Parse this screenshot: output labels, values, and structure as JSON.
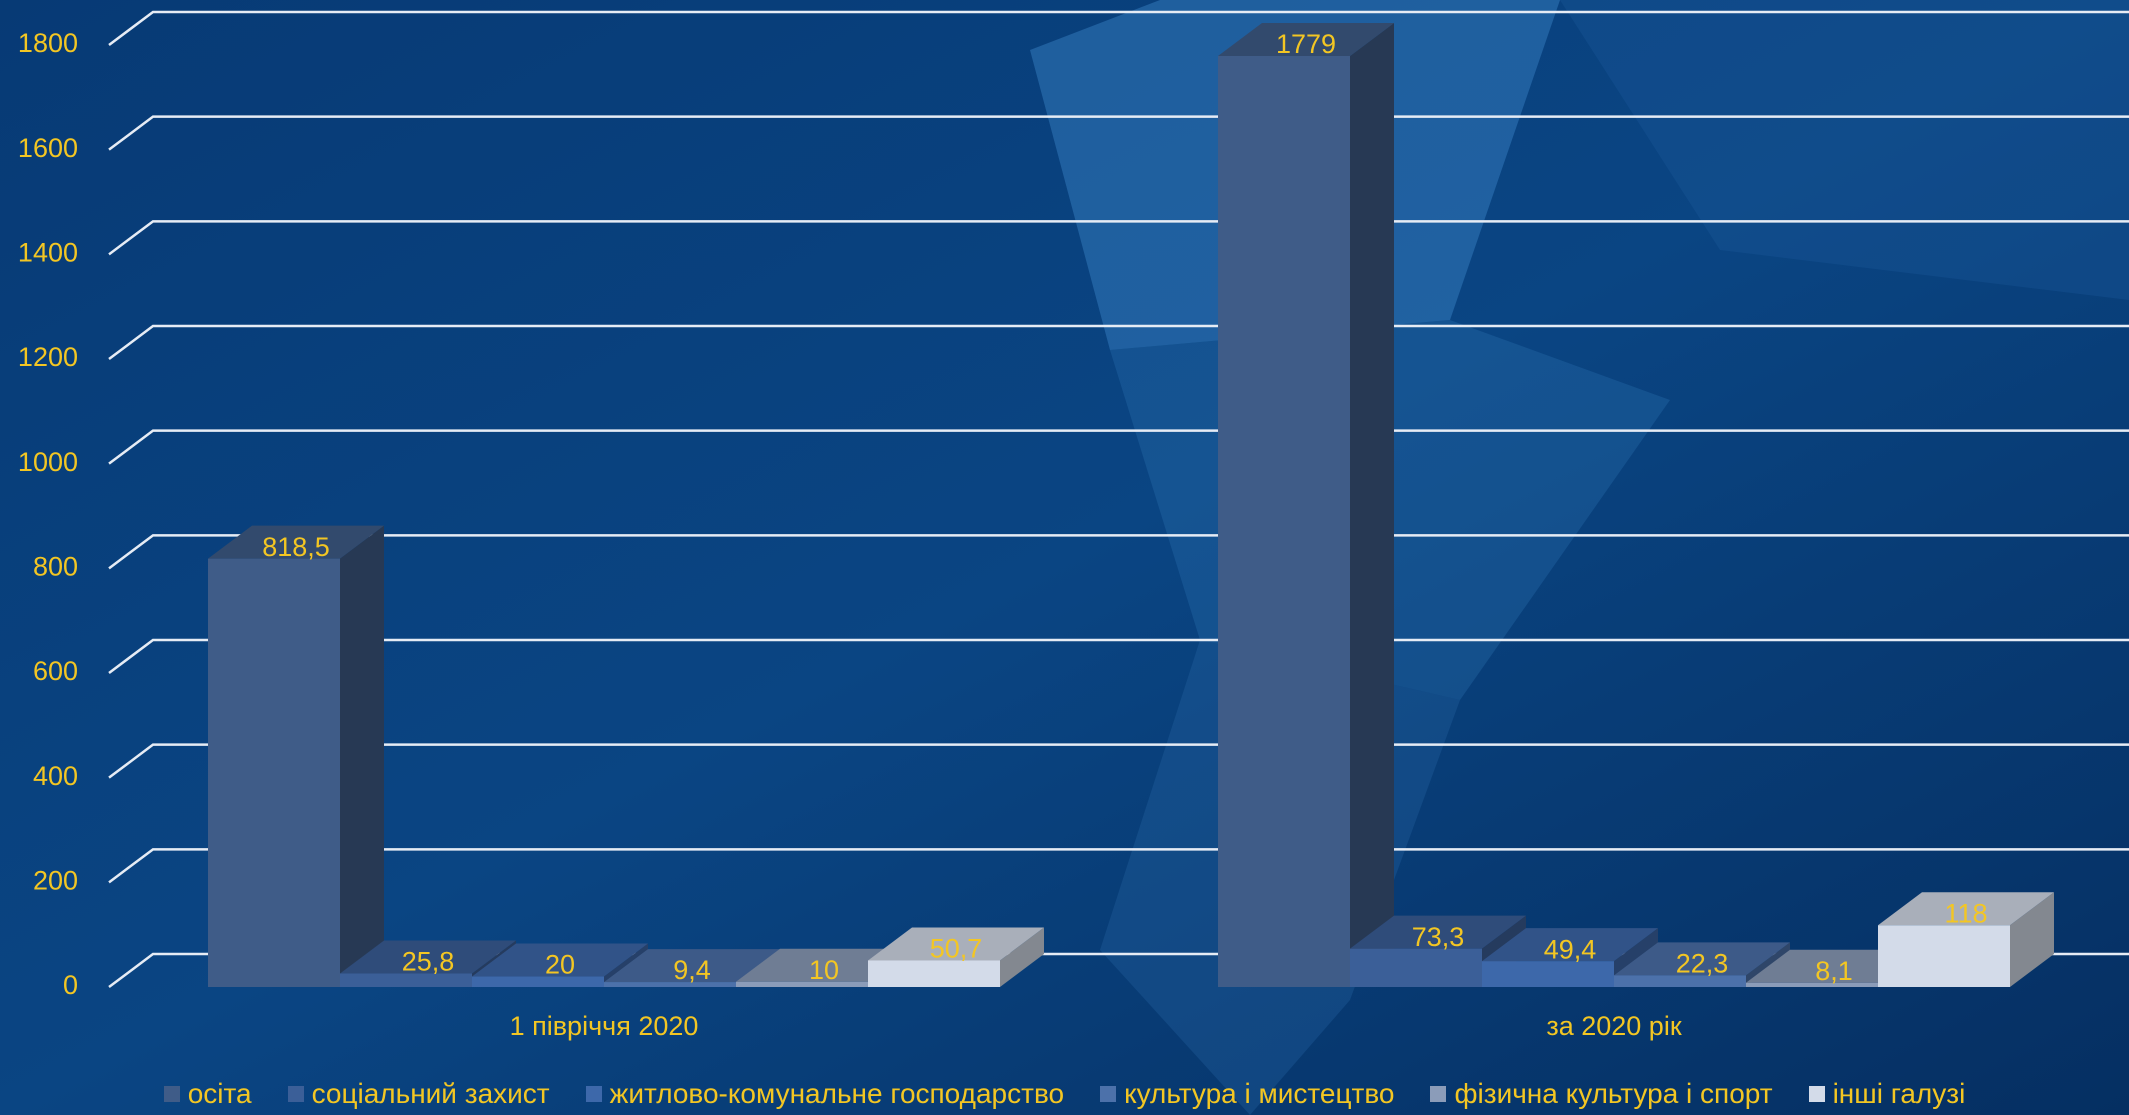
{
  "chart_data": {
    "type": "bar3d",
    "categories": [
      "1 півріччя 2020",
      "за 2020 рік"
    ],
    "series": [
      {
        "name": "осіта",
        "color": "#3f5c88",
        "values": [
          818.5,
          1779
        ],
        "value_labels": [
          "818,5",
          "1779"
        ]
      },
      {
        "name": "соціальний захист",
        "color": "#3b5f98",
        "values": [
          25.8,
          73.3
        ],
        "value_labels": [
          "25,8",
          "73,3"
        ]
      },
      {
        "name": "житлово-комунальне господарство",
        "color": "#3d68aa",
        "values": [
          20,
          49.4
        ],
        "value_labels": [
          "20",
          "49,4"
        ]
      },
      {
        "name": "культура і мистецтво",
        "color": "#4c71aa",
        "values": [
          9.4,
          22.3
        ],
        "value_labels": [
          "9,4",
          "22,3"
        ]
      },
      {
        "name": "фізична культура і спорт",
        "color": "#8b9cb9",
        "values": [
          10,
          8.1
        ],
        "value_labels": [
          "10",
          "8,1"
        ]
      },
      {
        "name": "інші галузі",
        "color": "#d3dbe9",
        "values": [
          50.7,
          118
        ],
        "value_labels": [
          "50,7",
          "118"
        ]
      }
    ],
    "ylim": [
      0,
      1800
    ],
    "yticks": [
      0,
      200,
      400,
      600,
      800,
      1000,
      1200,
      1400,
      1600,
      1800
    ],
    "grid": true,
    "legend": "bottom"
  }
}
